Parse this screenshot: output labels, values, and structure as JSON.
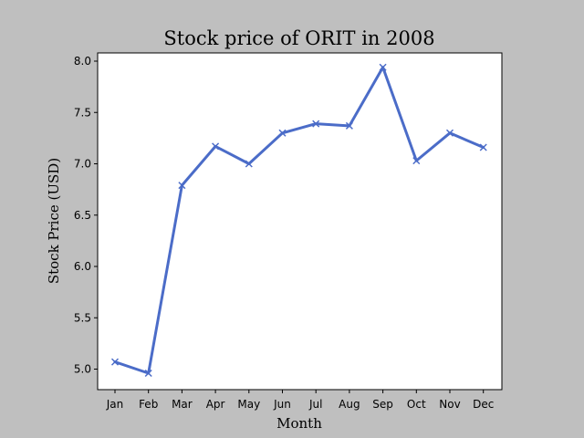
{
  "chart_data": {
    "type": "line",
    "title": "Stock price of ORIT in 2008",
    "xlabel": "Month",
    "ylabel": "Stock Price (USD)",
    "categories": [
      "Jan",
      "Feb",
      "Mar",
      "Apr",
      "May",
      "Jun",
      "Jul",
      "Aug",
      "Sep",
      "Oct",
      "Nov",
      "Dec"
    ],
    "series": [
      {
        "values": [
          5.07,
          4.96,
          6.79,
          7.17,
          7.0,
          7.3,
          7.39,
          7.37,
          7.94,
          7.03,
          7.3,
          7.16
        ],
        "color": "#4b6cc8",
        "marker": "x"
      }
    ],
    "ylim": [
      4.8,
      8.08
    ],
    "yticks": [
      "5.0",
      "5.5",
      "6.0",
      "6.5",
      "7.0",
      "7.5",
      "8.0"
    ],
    "grid": false,
    "legend": "none",
    "colors": {
      "figure_bg": "#bfbfbf",
      "plot_bg": "#ffffff",
      "line": "#4b6cc8"
    }
  }
}
